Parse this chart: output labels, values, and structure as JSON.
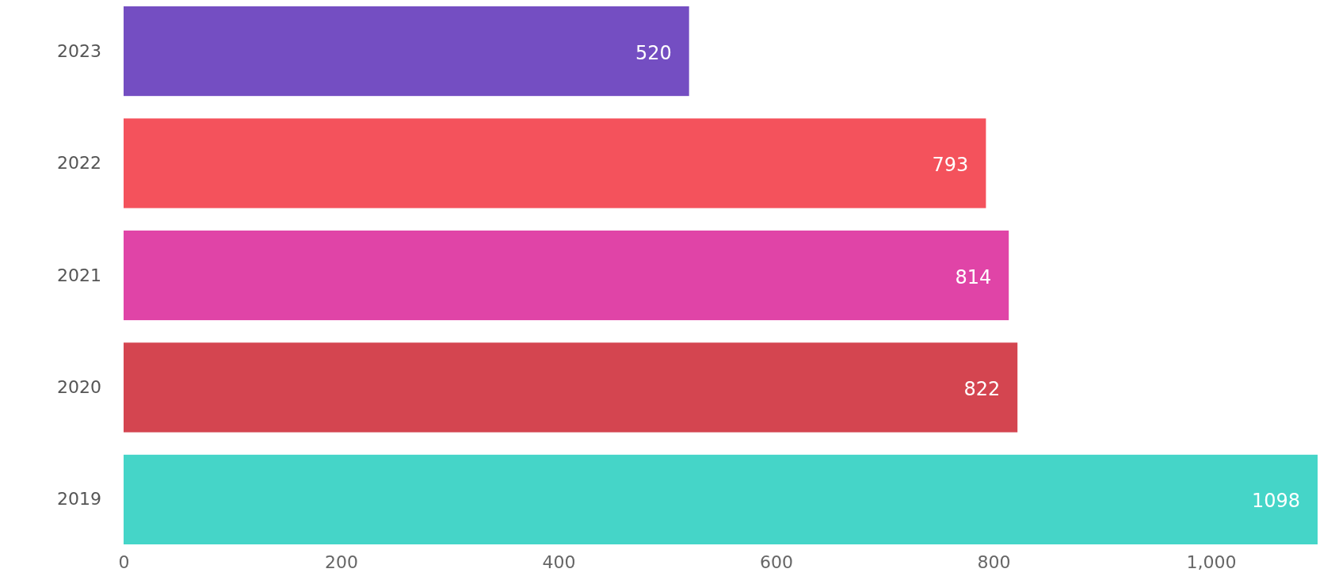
{
  "chart_data": {
    "type": "bar",
    "orientation": "horizontal",
    "categories": [
      "2023",
      "2022",
      "2021",
      "2020",
      "2019"
    ],
    "values": [
      520,
      793,
      814,
      822,
      1098
    ],
    "colors": [
      "#744ec2",
      "#f4525c",
      "#e044a7",
      "#d44550",
      "#45d5c8"
    ],
    "xlim": [
      0,
      1098
    ],
    "xticks": [
      0,
      200,
      400,
      600,
      800,
      {
        "value": 1000,
        "label": "1,000"
      }
    ],
    "data_labels": true,
    "grid": false
  }
}
